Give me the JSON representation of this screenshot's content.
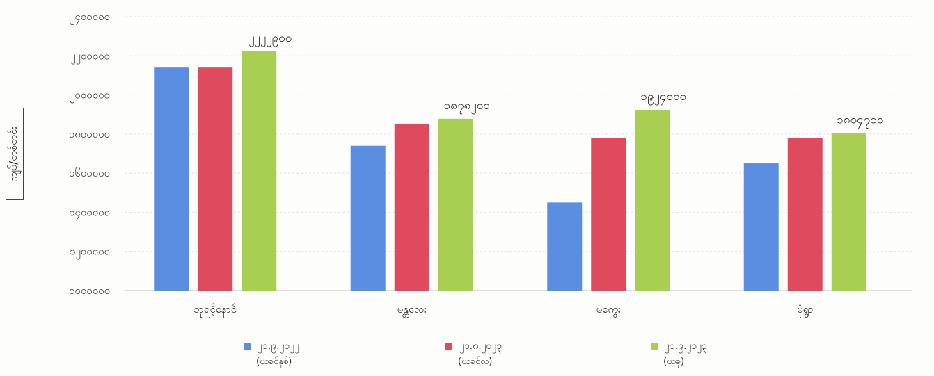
{
  "chart_data": {
    "type": "bar",
    "title": "",
    "ylabel": "ကျပ်/တစ်တင်း",
    "xlabel": "",
    "categories": [
      "ဘုရင့်နောင်",
      "မန္တလေး",
      "မကွေး",
      "မုံရွာ"
    ],
    "y_ticks": [
      "၁၀၀၀၀၀၀",
      "၁၂၀၀၀၀၀",
      "၁၄၀၀၀၀၀",
      "၁၆၀၀၀၀၀",
      "၁၈၀၀၀၀၀",
      "၂၀၀၀၀၀၀",
      "၂၂၀၀၀၀၀",
      "၂၄၀၀၀၀၀"
    ],
    "ylim": [
      1000000,
      2400000
    ],
    "grid": true,
    "legend_position": "bottom",
    "series": [
      {
        "name": "၂၁.၉.၂၀၂၂",
        "sub": "(ယခင်နှစ်)",
        "color": "#5b8ee0",
        "values": [
          2140000,
          1740000,
          1450000,
          1650000
        ]
      },
      {
        "name": "၂၁.၈.၂၀၂၃",
        "sub": "(ယခင်လ)",
        "color": "#e04a5e",
        "values": [
          2140000,
          1850000,
          1780000,
          1780000
        ]
      },
      {
        "name": "၂၁.၉.၂၀၂၃",
        "sub": "(ယခု)",
        "color": "#a9cf52",
        "values": [
          2222900,
          1878200,
          1924000,
          1804700
        ]
      }
    ],
    "data_labels": [
      "၂၂၂၂၉၀၀",
      "၁၈၇၈၂၀၀",
      "၁၉၂၄၀၀၀",
      "၁၈၀၄၇၀၀"
    ]
  }
}
